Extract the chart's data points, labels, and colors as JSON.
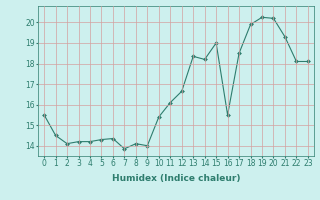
{
  "x": [
    0,
    1,
    2,
    3,
    4,
    5,
    6,
    7,
    8,
    9,
    10,
    11,
    12,
    13,
    14,
    15,
    16,
    17,
    18,
    19,
    20,
    21,
    22,
    23
  ],
  "y": [
    15.5,
    14.5,
    14.1,
    14.2,
    14.2,
    14.3,
    14.35,
    13.85,
    14.1,
    14.0,
    15.4,
    16.1,
    16.65,
    18.35,
    18.2,
    19.0,
    15.5,
    18.5,
    19.9,
    20.25,
    20.2,
    19.3,
    18.1,
    18.1
  ],
  "line_color": "#2e7d6e",
  "marker": "D",
  "marker_size": 2.0,
  "bg_color": "#cdf0ee",
  "grid_color": "#d4a0a0",
  "xlabel": "Humidex (Indice chaleur)",
  "ylim": [
    13.5,
    20.8
  ],
  "xlim": [
    -0.5,
    23.5
  ],
  "yticks": [
    14,
    15,
    16,
    17,
    18,
    19,
    20
  ],
  "xticks": [
    0,
    1,
    2,
    3,
    4,
    5,
    6,
    7,
    8,
    9,
    10,
    11,
    12,
    13,
    14,
    15,
    16,
    17,
    18,
    19,
    20,
    21,
    22,
    23
  ],
  "xlabel_fontsize": 6.5,
  "tick_fontsize": 5.5,
  "ytick_fontsize": 5.5
}
